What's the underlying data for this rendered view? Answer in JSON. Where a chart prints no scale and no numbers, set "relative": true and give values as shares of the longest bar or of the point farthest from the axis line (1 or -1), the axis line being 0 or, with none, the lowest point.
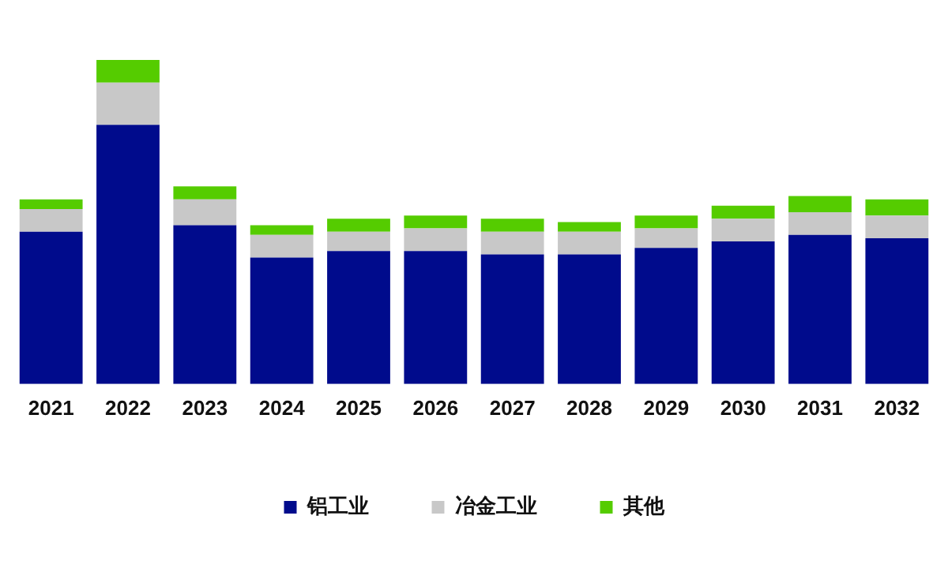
{
  "chart_data": {
    "type": "bar",
    "relative": true,
    "stacked": true,
    "legend": "bottom",
    "grid": false,
    "categories": [
      "2021",
      "2022",
      "2023",
      "2024",
      "2025",
      "2026",
      "2027",
      "2028",
      "2029",
      "2030",
      "2031",
      "2032"
    ],
    "series": [
      {
        "name": "铝工业",
        "color": "#000b8c",
        "values": [
          0.47,
          0.8,
          0.49,
          0.39,
          0.41,
          0.41,
          0.4,
          0.4,
          0.42,
          0.44,
          0.46,
          0.45
        ]
      },
      {
        "name": "冶金工业",
        "color": "#c8c8c8",
        "values": [
          0.07,
          0.13,
          0.08,
          0.07,
          0.06,
          0.07,
          0.07,
          0.07,
          0.06,
          0.07,
          0.07,
          0.07
        ]
      },
      {
        "name": "其他",
        "color": "#55cc00",
        "values": [
          0.03,
          0.07,
          0.04,
          0.03,
          0.04,
          0.04,
          0.04,
          0.03,
          0.04,
          0.04,
          0.05,
          0.05
        ]
      }
    ]
  }
}
